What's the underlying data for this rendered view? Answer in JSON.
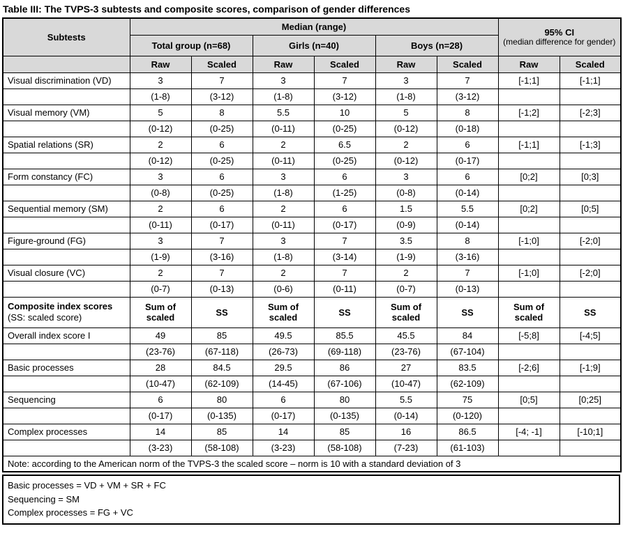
{
  "title": "Table III: The TVPS-3 subtests and composite scores, comparison of gender differences",
  "header": {
    "subtests": "Subtests",
    "median_range": "Median (range)",
    "ci_title": "95% CI",
    "ci_sub": "(median difference for gender)",
    "groups": [
      "Total group (n=68)",
      "Girls (n=40)",
      "Boys (n=28)"
    ],
    "raw": "Raw",
    "scaled": "Scaled"
  },
  "subtest_rows": [
    {
      "name": "Visual discrimination (VD)",
      "values": [
        "3",
        "7",
        "3",
        "7",
        "3",
        "7"
      ],
      "ci_raw": "[-1;1]",
      "ci_scaled": "[-1;1]",
      "ranges": [
        "(1-8)",
        "(3-12)",
        "(1-8)",
        "(3-12)",
        "(1-8)",
        "(3-12)"
      ]
    },
    {
      "name": "Visual memory (VM)",
      "values": [
        "5",
        "8",
        "5.5",
        "10",
        "5",
        "8"
      ],
      "ci_raw": "[-1;2]",
      "ci_scaled": "[-2;3]",
      "ranges": [
        "(0-12)",
        "(0-25)",
        "(0-11)",
        "(0-25)",
        "(0-12)",
        "(0-18)"
      ]
    },
    {
      "name": "Spatial relations (SR)",
      "values": [
        "2",
        "6",
        "2",
        "6.5",
        "2",
        "6"
      ],
      "ci_raw": "[-1;1]",
      "ci_scaled": "[-1;3]",
      "ranges": [
        "(0-12)",
        "(0-25)",
        "(0-11)",
        "(0-25)",
        "(0-12)",
        "(0-17)"
      ]
    },
    {
      "name": "Form constancy (FC)",
      "values": [
        "3",
        "6",
        "3",
        "6",
        "3",
        "6"
      ],
      "ci_raw": "[0;2]",
      "ci_scaled": "[0;3]",
      "ranges": [
        "(0-8)",
        "(0-25)",
        "(1-8)",
        "(1-25)",
        "(0-8)",
        "(0-14)"
      ]
    },
    {
      "name": "Sequential memory (SM)",
      "values": [
        "2",
        "6",
        "2",
        "6",
        "1.5",
        "5.5"
      ],
      "ci_raw": "[0;2]",
      "ci_scaled": "[0;5]",
      "ranges": [
        "(0-11)",
        "(0-17)",
        "(0-11)",
        "(0-17)",
        "(0-9)",
        "(0-14)"
      ]
    },
    {
      "name": "Figure-ground (FG)",
      "values": [
        "3",
        "7",
        "3",
        "7",
        "3.5",
        "8"
      ],
      "ci_raw": "[-1;0]",
      "ci_scaled": "[-2;0]",
      "ranges": [
        "(1-9)",
        "(3-16)",
        "(1-8)",
        "(3-14)",
        "(1-9)",
        "(3-16)"
      ]
    },
    {
      "name": "Visual closure (VC)",
      "values": [
        "2",
        "7",
        "2",
        "7",
        "2",
        "7"
      ],
      "ci_raw": "[-1;0]",
      "ci_scaled": "[-2;0]",
      "ranges": [
        "(0-7)",
        "(0-13)",
        "(0-6)",
        "(0-11)",
        "(0-7)",
        "(0-13)"
      ]
    }
  ],
  "composite_header": {
    "label": "Composite index scores",
    "sublabel": "(SS: scaled score)",
    "sum_label": "Sum of scaled",
    "ss_label": "SS"
  },
  "composite_rows": [
    {
      "name": "Overall index score I",
      "values": [
        "49",
        "85",
        "49.5",
        "85.5",
        "45.5",
        "84"
      ],
      "ci_raw": "[-5;8]",
      "ci_scaled": "[-4;5]",
      "ranges": [
        "(23-76)",
        "(67-118)",
        "(26-73)",
        "(69-118)",
        "(23-76)",
        "(67-104)"
      ]
    },
    {
      "name": "Basic processes",
      "values": [
        "28",
        "84.5",
        "29.5",
        "86",
        "27",
        "83.5"
      ],
      "ci_raw": "[-2;6]",
      "ci_scaled": "[-1;9]",
      "ranges": [
        "(10-47)",
        "(62-109)",
        "(14-45)",
        "(67-106)",
        "(10-47)",
        "(62-109)"
      ]
    },
    {
      "name": "Sequencing",
      "values": [
        "6",
        "80",
        "6",
        "80",
        "5.5",
        "75"
      ],
      "ci_raw": "[0;5]",
      "ci_scaled": "[0;25]",
      "ranges": [
        "(0-17)",
        "(0-135)",
        "(0-17)",
        "(0-135)",
        "(0-14)",
        "(0-120)"
      ]
    },
    {
      "name": "Complex processes",
      "values": [
        "14",
        "85",
        "14",
        "85",
        "16",
        "86.5"
      ],
      "ci_raw": "[-4; -1]",
      "ci_scaled": "[-10;1]",
      "ranges": [
        "(3-23)",
        "(58-108)",
        "(3-23)",
        "(58-108)",
        "(7-23)",
        "(61-103)"
      ]
    }
  ],
  "note": "Note: according to the American norm of the TVPS-3 the scaled score – norm is 10 with a standard deviation of 3",
  "footnotes": [
    "Basic processes = VD + VM + SR + FC",
    "Sequencing = SM",
    "Complex processes = FG + VC"
  ]
}
